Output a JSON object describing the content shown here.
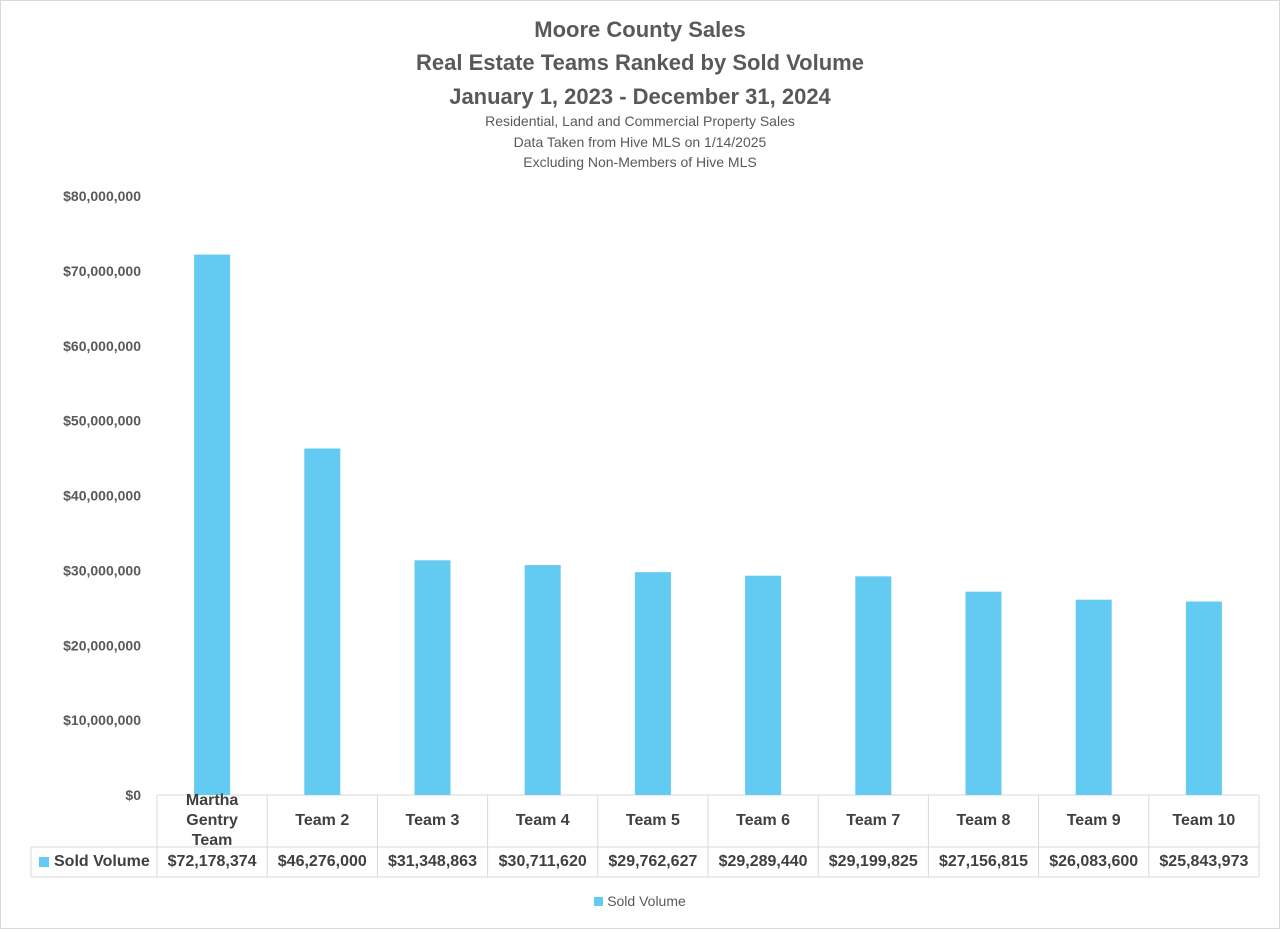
{
  "chart_data": {
    "type": "bar",
    "title": "Moore County Sales",
    "title_line2": "Real Estate Teams Ranked by Sold Volume",
    "title_line3": "January 1, 2023 - December 31, 2024",
    "subtitle_line1": "Residential, Land and Commercial Property Sales",
    "subtitle_line2": "Data Taken from Hive MLS on 1/14/2025",
    "subtitle_line3": "Excluding Non-Members of Hive MLS",
    "categories": [
      "Martha Gentry Team",
      "Team 2",
      "Team 3",
      "Team 4",
      "Team 5",
      "Team 6",
      "Team 7",
      "Team 8",
      "Team 9",
      "Team 10"
    ],
    "series": [
      {
        "name": "Sold Volume",
        "color": "#63cbf2",
        "values": [
          72178374,
          46276000,
          31348863,
          30711620,
          29762627,
          29289440,
          29199825,
          27156815,
          26083600,
          25843973
        ],
        "value_labels": [
          "$72,178,374",
          "$46,276,000",
          "$31,348,863",
          "$30,711,620",
          "$29,762,627",
          "$29,289,440",
          "$29,199,825",
          "$27,156,815",
          "$26,083,600",
          "$25,843,973"
        ]
      }
    ],
    "ylim": [
      0,
      80000000
    ],
    "yticks": [
      0,
      10000000,
      20000000,
      30000000,
      40000000,
      50000000,
      60000000,
      70000000,
      80000000
    ],
    "ytick_labels": [
      "$0",
      "$10,000,000",
      "$20,000,000",
      "$30,000,000",
      "$40,000,000",
      "$50,000,000",
      "$60,000,000",
      "$70,000,000",
      "$80,000,000"
    ],
    "grid": false,
    "legend": "bottom",
    "data_table": true
  }
}
